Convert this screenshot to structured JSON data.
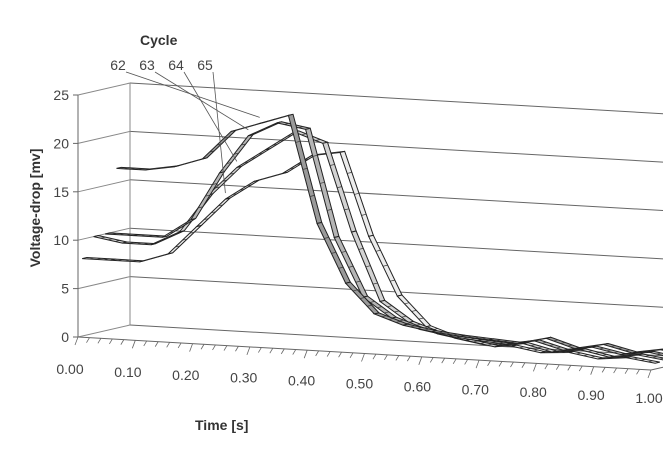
{
  "chart_data": {
    "type": "line",
    "variant": "3d-ribbon",
    "xlabel": "Time [s]",
    "ylabel": "Voltage-drop [mv]",
    "xlim": [
      0.0,
      1.0
    ],
    "ylim": [
      0,
      25
    ],
    "x_ticks": [
      "0.00",
      "0.10",
      "0.20",
      "0.30",
      "0.40",
      "0.50",
      "0.60",
      "0.70",
      "0.80",
      "0.90",
      "1.00"
    ],
    "y_ticks": [
      "0",
      "5",
      "10",
      "15",
      "20",
      "25"
    ],
    "legend_title": "Cycle",
    "legend_position": "top-left",
    "grid": true,
    "x": [
      0.0,
      0.05,
      0.1,
      0.15,
      0.2,
      0.25,
      0.3,
      0.35,
      0.4,
      0.45,
      0.5,
      0.55,
      0.6,
      0.65,
      0.7,
      0.75,
      0.8,
      0.85,
      0.9,
      0.95,
      1.0
    ],
    "series": [
      {
        "name": "62",
        "values": [
          16.5,
          16.5,
          17,
          18,
          21,
          22,
          23,
          12,
          6,
          3,
          2,
          1.5,
          1.2,
          1,
          0.8,
          1.5,
          0.6,
          1.2,
          0.5,
          1,
          0.5
        ]
      },
      {
        "name": "63",
        "values": [
          10,
          10,
          10,
          12,
          17,
          21,
          22.5,
          22,
          11,
          5,
          3,
          2,
          1.5,
          1.2,
          1,
          1.5,
          0.7,
          1.2,
          0.6,
          1,
          0.5
        ]
      },
      {
        "name": "64",
        "values": [
          10,
          9.5,
          9.5,
          11,
          15,
          18,
          20,
          22,
          21,
          12,
          5,
          3,
          2,
          1.5,
          1,
          1.5,
          0.8,
          1.2,
          0.6,
          1,
          0.6
        ]
      },
      {
        "name": "65",
        "values": [
          8,
          8,
          8,
          9,
          12,
          15,
          17,
          18,
          20,
          20.5,
          12,
          6,
          3,
          2,
          1.5,
          1.5,
          1,
          1.2,
          0.7,
          1,
          0.6
        ]
      }
    ]
  }
}
